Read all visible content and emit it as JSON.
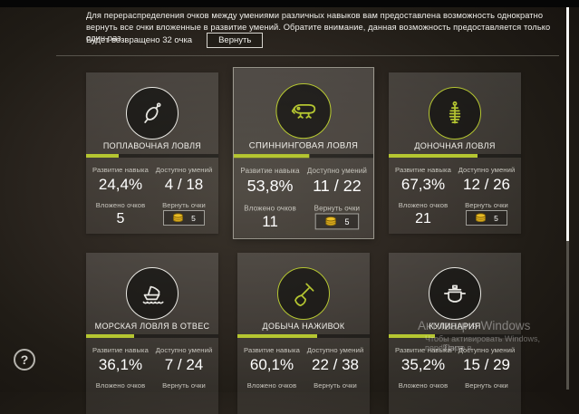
{
  "header": {
    "description": "Для перераспределения очков между умениями различных навыков вам предоставлена возможность однократно вернуть все очки вложенные в развитие умений. Обратите внимание, данная возможность предоставляется только один раз.",
    "return_summary": "Будет возвращено 32 очка",
    "return_button_label": "Вернуть"
  },
  "labels": {
    "skill_progress": "Развитие навыка",
    "abilities_available": "Доступно умений",
    "points_invested": "Вложено очков",
    "return_points": "Вернуть очки"
  },
  "cards": [
    {
      "title": "ПОПЛАВОЧНАЯ ЛОВЛЯ",
      "icon": "float",
      "accent": "white",
      "selected": false,
      "progress_percent": 24.4,
      "progress_text": "24,4%",
      "abilities": "4 / 18",
      "invested": "5",
      "return_cost": "5"
    },
    {
      "title": "СПИННИНГОВАЯ ЛОВЛЯ",
      "icon": "lure",
      "accent": "green",
      "selected": true,
      "progress_percent": 53.8,
      "progress_text": "53,8%",
      "abilities": "11 / 22",
      "invested": "11",
      "return_cost": "5"
    },
    {
      "title": "ДОНОЧНАЯ ЛОВЛЯ",
      "icon": "feeder",
      "accent": "green",
      "selected": false,
      "progress_percent": 67.3,
      "progress_text": "67,3%",
      "abilities": "12 / 26",
      "invested": "21",
      "return_cost": "5"
    },
    {
      "title": "МОРСКАЯ ЛОВЛЯ В ОТВЕС",
      "icon": "boat",
      "accent": "white",
      "selected": false,
      "progress_percent": 36.1,
      "progress_text": "36,1%",
      "abilities": "7 / 24",
      "invested": "",
      "return_cost": ""
    },
    {
      "title": "ДОБЫЧА НАЖИВОК",
      "icon": "shovel",
      "accent": "green",
      "selected": false,
      "progress_percent": 60.1,
      "progress_text": "60,1%",
      "abilities": "22 / 38",
      "invested": "",
      "return_cost": ""
    },
    {
      "title": "КУЛИНАРИЯ",
      "icon": "pot",
      "accent": "white",
      "selected": false,
      "progress_percent": 35.2,
      "progress_text": "35,2%",
      "abilities": "15 / 29",
      "invested": "",
      "return_cost": ""
    }
  ],
  "help": {
    "icon_text": "?"
  },
  "watermark": {
    "line1": "Активация Windows",
    "line2": "Чтобы активировать Windows, перейдите в",
    "line3": "\"Пара"
  },
  "colors": {
    "accent_green": "#b5c631",
    "coin_gold": "#e0b42a",
    "scroll_thumb": "#f5f5f3"
  }
}
